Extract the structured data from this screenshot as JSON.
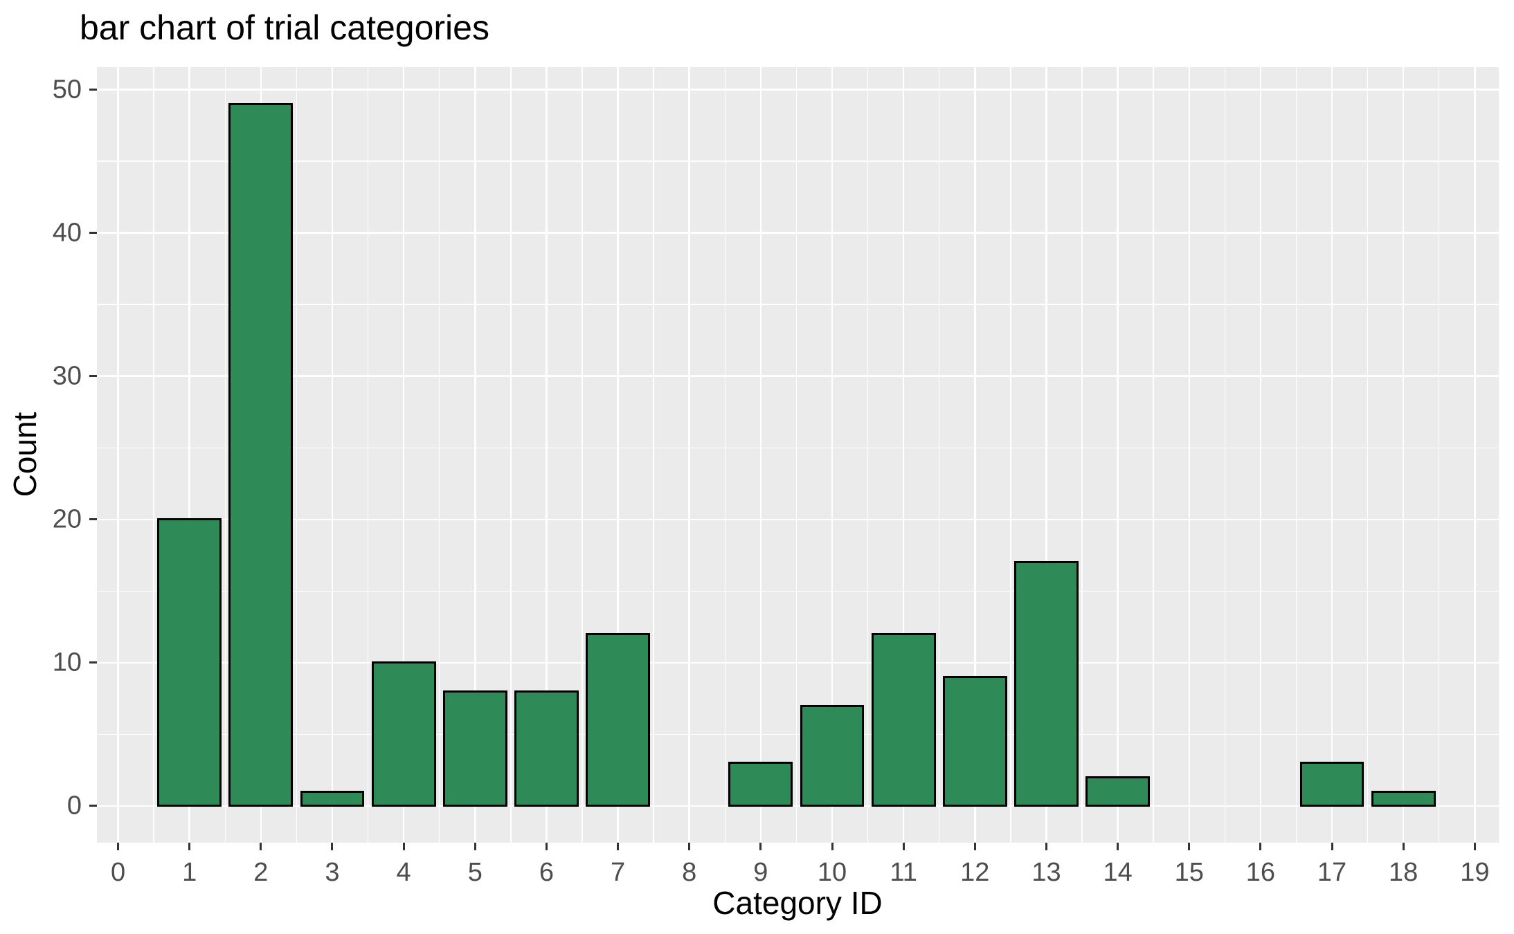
{
  "page": {
    "background": "#FFFFFF"
  },
  "chart_data": {
    "type": "bar",
    "title": "bar chart of trial categories",
    "xlabel": "Category ID",
    "ylabel": "Count",
    "x": [
      1,
      2,
      3,
      4,
      5,
      6,
      7,
      9,
      10,
      11,
      12,
      13,
      14,
      17,
      18
    ],
    "values": [
      20,
      49,
      1,
      10,
      8,
      8,
      12,
      3,
      7,
      12,
      9,
      17,
      2,
      3,
      1
    ],
    "bar_width": 0.9,
    "x_ticks": [
      0,
      1,
      2,
      3,
      4,
      5,
      6,
      7,
      8,
      9,
      10,
      11,
      12,
      13,
      14,
      15,
      16,
      17,
      18,
      19
    ],
    "x_minor_ticks": [
      0.5,
      1.5,
      2.5,
      3.5,
      4.5,
      5.5,
      6.5,
      7.5,
      8.5,
      9.5,
      10.5,
      11.5,
      12.5,
      13.5,
      14.5,
      15.5,
      16.5,
      17.5,
      18.5
    ],
    "y_ticks": [
      0,
      10,
      20,
      30,
      40,
      50
    ],
    "y_minor_ticks": [
      5,
      15,
      25,
      35,
      45
    ],
    "xlim": [
      -0.296,
      19.336
    ],
    "ylim": [
      -2.56,
      51.57
    ],
    "grid": true,
    "legend_position": "none",
    "colors": {
      "bar_fill": "#2E8B57",
      "bar_stroke": "#000000",
      "panel_bg": "#EBEBEB",
      "grid": "#FFFFFF",
      "tick_label": "#4D4D4D",
      "axis_title": "#000000",
      "title": "#000000",
      "tick_mark": "#333333"
    }
  }
}
